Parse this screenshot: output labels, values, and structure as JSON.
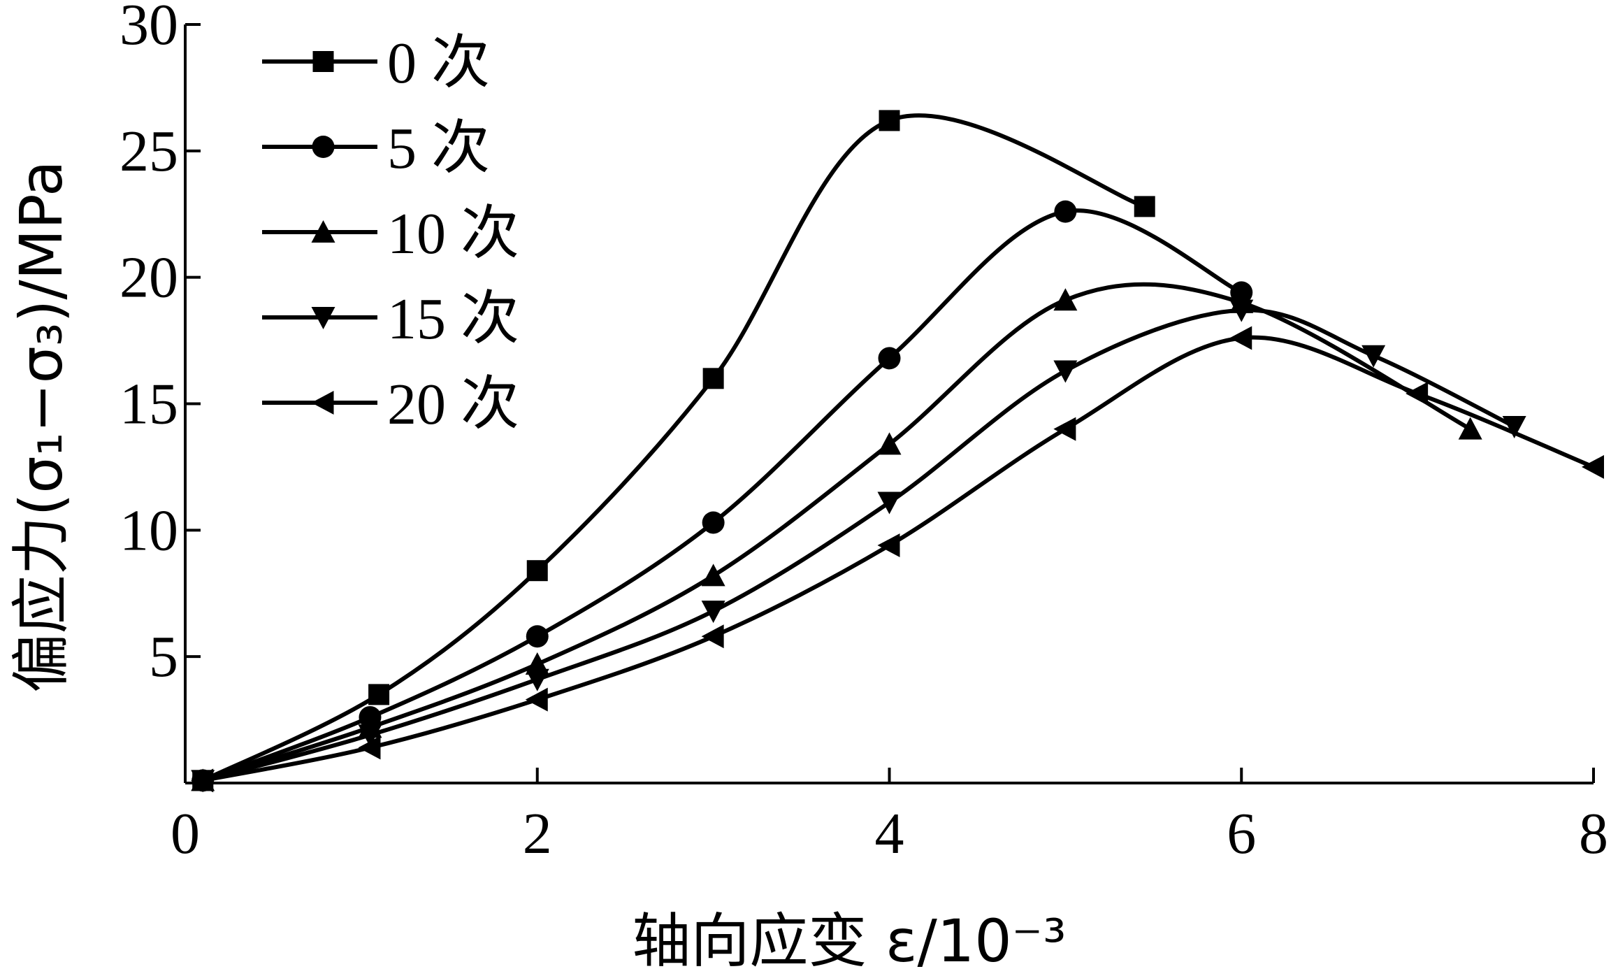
{
  "chart_data": {
    "type": "line",
    "xlabel": "轴向应变 ε/10⁻³",
    "ylabel": "偏应力(σ₁−σ₃)/MPa",
    "xlim": [
      0,
      8
    ],
    "ylim": [
      0,
      30
    ],
    "x_ticks": [
      "0",
      "2",
      "4",
      "6",
      "8"
    ],
    "y_ticks": [
      "5",
      "10",
      "15",
      "20",
      "25",
      "30"
    ],
    "grid": false,
    "legend_position": "top-left",
    "series": [
      {
        "name": "0 次",
        "marker": "square",
        "points": [
          [
            0.1,
            0.1
          ],
          [
            1.1,
            3.5
          ],
          [
            2.0,
            8.4
          ],
          [
            3.0,
            16.0
          ],
          [
            4.0,
            26.2
          ],
          [
            5.45,
            22.8
          ]
        ]
      },
      {
        "name": "5 次",
        "marker": "circle",
        "points": [
          [
            0.1,
            0.1
          ],
          [
            1.05,
            2.6
          ],
          [
            2.0,
            5.8
          ],
          [
            3.0,
            10.3
          ],
          [
            4.0,
            16.8
          ],
          [
            5.0,
            22.6
          ],
          [
            6.0,
            19.4
          ]
        ]
      },
      {
        "name": "10 次",
        "marker": "triangle-up",
        "points": [
          [
            0.1,
            0.1
          ],
          [
            1.05,
            2.2
          ],
          [
            2.0,
            4.7
          ],
          [
            3.0,
            8.2
          ],
          [
            4.0,
            13.4
          ],
          [
            5.0,
            19.1
          ],
          [
            6.0,
            19.0
          ],
          [
            7.3,
            14.0
          ]
        ]
      },
      {
        "name": "15 次",
        "marker": "triangle-down",
        "points": [
          [
            0.1,
            0.1
          ],
          [
            1.05,
            1.9
          ],
          [
            2.0,
            4.1
          ],
          [
            3.0,
            6.8
          ],
          [
            4.0,
            11.1
          ],
          [
            5.0,
            16.3
          ],
          [
            6.0,
            18.7
          ],
          [
            6.75,
            16.9
          ],
          [
            7.55,
            14.1
          ]
        ]
      },
      {
        "name": "20 次",
        "marker": "triangle-left",
        "points": [
          [
            0.1,
            0.1
          ],
          [
            1.05,
            1.4
          ],
          [
            2.0,
            3.3
          ],
          [
            3.0,
            5.8
          ],
          [
            4.0,
            9.4
          ],
          [
            5.0,
            14.0
          ],
          [
            6.0,
            17.6
          ],
          [
            7.0,
            15.4
          ],
          [
            8.0,
            12.5
          ]
        ]
      }
    ]
  }
}
